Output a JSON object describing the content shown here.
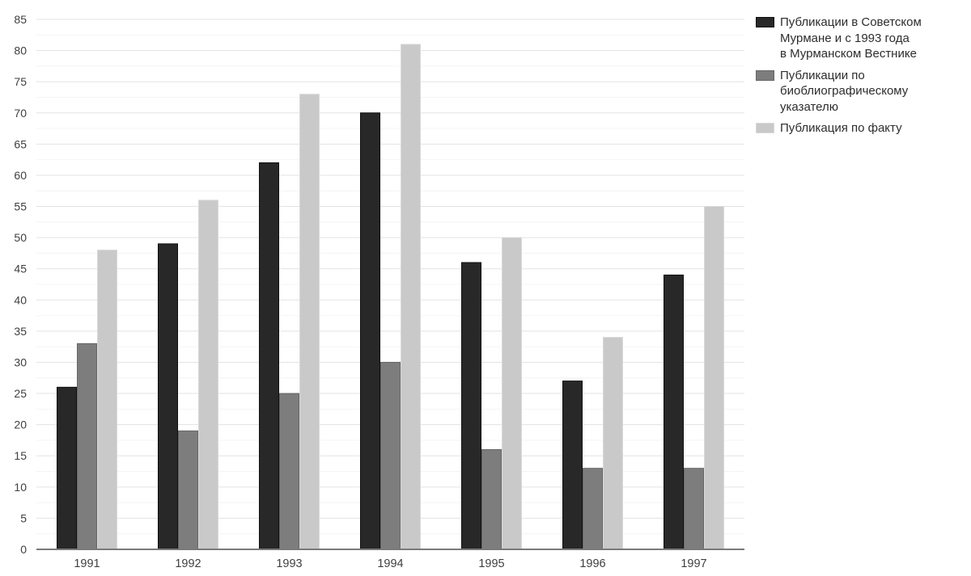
{
  "legend": {
    "items": [
      {
        "label": "Публикации в Советском\nМурмане и с 1993 года\nв Мурманском Вестнике",
        "color": "#282828",
        "border": "#101010"
      },
      {
        "label": "Публикации по\nбиоблиографическому указателю",
        "color": "#7d7d7d",
        "border": "#676767"
      },
      {
        "label": "Публикация по факту",
        "color": "#c9c9c9",
        "border": "#d9d9d9"
      }
    ]
  },
  "chart_data": {
    "type": "bar",
    "title": "",
    "xlabel": "",
    "ylabel": "",
    "categories": [
      "1991",
      "1992",
      "1993",
      "1994",
      "1995",
      "1996",
      "1997"
    ],
    "series": [
      {
        "name": "Публикации в Советском Мурмане и с 1993 года в Мурманском Вестнике",
        "color": "#282828",
        "stroke": "#101010",
        "values": [
          26,
          49,
          62,
          70,
          46,
          27,
          44
        ]
      },
      {
        "name": "Публикации по биоблиографическому указателю",
        "color": "#7d7d7d",
        "stroke": "#676767",
        "values": [
          33,
          19,
          25,
          30,
          16,
          13,
          13
        ]
      },
      {
        "name": "Публикация по факту",
        "color": "#c9c9c9",
        "stroke": "#d9d9d9",
        "values": [
          48,
          56,
          73,
          81,
          50,
          34,
          55
        ]
      }
    ],
    "ylim": [
      0,
      85
    ],
    "ytick_step": 5,
    "yminor_step": 2.5,
    "grid": true,
    "legend_position": "top-right",
    "colors": {
      "grid_major": "#e3e3e3",
      "grid_minor": "#f4f4f4",
      "axis_line": "#7a7a7a",
      "tick_text": "#3f3f3f"
    }
  }
}
